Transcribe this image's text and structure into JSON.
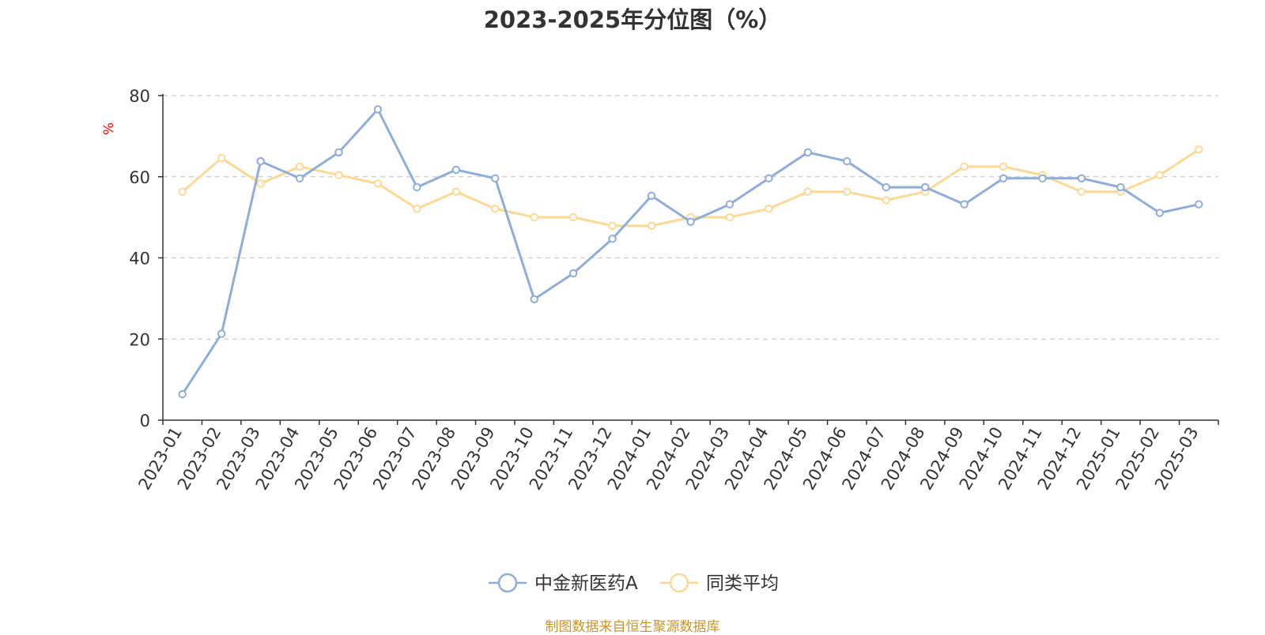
{
  "title": "2023-2025年分位图（%）",
  "source_note": "制图数据来自恒生聚源数据库",
  "colors": {
    "series_a": "#8fadd8",
    "series_b": "#fdd995",
    "axis": "#333333",
    "grid": "#cccccc",
    "unit": "#ff0000",
    "source": "#c8962a"
  },
  "chart_data": {
    "type": "line",
    "title": "2023-2025年分位图（%）",
    "ylabel": "%",
    "xlabel": "",
    "ylim": [
      0,
      80
    ],
    "yticks": [
      0,
      20,
      40,
      60,
      80
    ],
    "grid": true,
    "legend_position": "bottom-center",
    "categories": [
      "2023-01",
      "2023-02",
      "2023-03",
      "2023-04",
      "2023-05",
      "2023-06",
      "2023-07",
      "2023-08",
      "2023-09",
      "2023-10",
      "2023-11",
      "2023-12",
      "2024-01",
      "2024-02",
      "2024-03",
      "2024-04",
      "2024-05",
      "2024-06",
      "2024-07",
      "2024-08",
      "2024-09",
      "2024-10",
      "2024-11",
      "2024-12",
      "2025-01",
      "2025-02",
      "2025-03"
    ],
    "series": [
      {
        "name": "中金新医药A",
        "values": [
          6.4,
          21.3,
          63.8,
          59.6,
          66.0,
          76.6,
          57.4,
          61.7,
          59.6,
          29.8,
          36.2,
          44.7,
          55.3,
          48.9,
          53.2,
          59.6,
          66.0,
          63.8,
          57.4,
          57.4,
          53.2,
          59.6,
          59.6,
          59.6,
          57.4,
          51.1,
          53.2
        ]
      },
      {
        "name": "同类平均",
        "values": [
          56.3,
          64.6,
          58.3,
          62.5,
          60.4,
          58.3,
          52.1,
          56.3,
          52.1,
          50.0,
          50.0,
          47.9,
          47.9,
          50.0,
          50.0,
          52.1,
          56.3,
          56.3,
          54.2,
          56.3,
          62.5,
          62.5,
          60.4,
          56.3,
          56.3,
          60.4,
          66.7
        ]
      }
    ]
  }
}
